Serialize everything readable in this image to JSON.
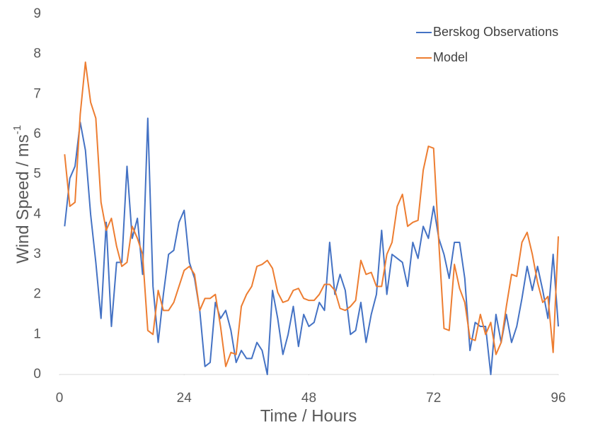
{
  "chart_data": {
    "type": "line",
    "xlabel": "Time / Hours",
    "ylabel": "Wind Speed / ms",
    "ylabel_superscript": "-1",
    "x": [
      1,
      2,
      3,
      4,
      5,
      6,
      7,
      8,
      9,
      10,
      11,
      12,
      13,
      14,
      15,
      16,
      17,
      18,
      19,
      20,
      21,
      22,
      23,
      24,
      25,
      26,
      27,
      28,
      29,
      30,
      31,
      32,
      33,
      34,
      35,
      36,
      37,
      38,
      39,
      40,
      41,
      42,
      43,
      44,
      45,
      46,
      47,
      48,
      49,
      50,
      51,
      52,
      53,
      54,
      55,
      56,
      57,
      58,
      59,
      60,
      61,
      62,
      63,
      64,
      65,
      66,
      67,
      68,
      69,
      70,
      71,
      72,
      73,
      74,
      75,
      76,
      77,
      78,
      79,
      80,
      81,
      82,
      83,
      84,
      85,
      86,
      87,
      88,
      89,
      90,
      91,
      92,
      93,
      94,
      95,
      96
    ],
    "series": [
      {
        "name": "Berskog Observations",
        "color": "#4472c4",
        "values": [
          3.7,
          4.9,
          5.2,
          6.3,
          5.6,
          4.0,
          2.8,
          1.4,
          3.8,
          1.2,
          2.8,
          2.8,
          5.2,
          3.4,
          3.9,
          2.5,
          6.4,
          2.2,
          0.8,
          2.0,
          3.0,
          3.1,
          3.8,
          4.1,
          2.8,
          2.4,
          1.6,
          0.2,
          0.3,
          1.8,
          1.4,
          1.6,
          1.1,
          0.3,
          0.6,
          0.4,
          0.4,
          0.8,
          0.6,
          0.0,
          2.1,
          1.4,
          0.5,
          1.0,
          1.7,
          0.7,
          1.5,
          1.2,
          1.3,
          1.8,
          1.6,
          3.3,
          2.0,
          2.5,
          2.1,
          1.0,
          1.1,
          1.8,
          0.8,
          1.5,
          2.0,
          3.6,
          2.0,
          3.0,
          2.9,
          2.8,
          2.2,
          3.3,
          2.9,
          3.7,
          3.4,
          4.2,
          3.4,
          3.0,
          2.4,
          3.3,
          3.3,
          2.4,
          0.6,
          1.3,
          1.2,
          1.2,
          0.0,
          1.5,
          0.8,
          1.5,
          0.8,
          1.2,
          1.9,
          2.7,
          2.1,
          2.7,
          2.1,
          1.4,
          3.0,
          1.2
        ]
      },
      {
        "name": "Model",
        "color": "#ed7d31",
        "values": [
          5.5,
          4.2,
          4.3,
          6.5,
          7.8,
          6.8,
          6.4,
          4.3,
          3.6,
          3.9,
          3.2,
          2.7,
          2.8,
          3.7,
          3.4,
          3.0,
          1.1,
          1.0,
          2.1,
          1.6,
          1.6,
          1.8,
          2.2,
          2.6,
          2.7,
          2.5,
          1.6,
          1.9,
          1.9,
          2.0,
          1.2,
          0.2,
          0.55,
          0.5,
          1.7,
          2.0,
          2.2,
          2.7,
          2.75,
          2.85,
          2.65,
          2.05,
          1.8,
          1.85,
          2.1,
          2.15,
          1.9,
          1.85,
          1.85,
          2.0,
          2.25,
          2.25,
          2.1,
          1.65,
          1.6,
          1.7,
          1.85,
          2.85,
          2.5,
          2.55,
          2.2,
          2.2,
          3.0,
          3.3,
          4.2,
          4.5,
          3.7,
          3.8,
          3.85,
          5.1,
          5.7,
          5.65,
          3.3,
          1.15,
          1.1,
          2.75,
          2.15,
          1.8,
          0.9,
          0.85,
          1.5,
          1.0,
          1.3,
          0.5,
          0.8,
          1.7,
          2.5,
          2.45,
          3.3,
          3.55,
          3.0,
          2.3,
          1.8,
          1.95,
          0.55,
          3.45
        ]
      }
    ],
    "xlim": [
      0,
      96
    ],
    "xticks": [
      0,
      24,
      48,
      72,
      96
    ],
    "ylim": [
      0,
      9
    ],
    "yticks": [
      0,
      1,
      2,
      3,
      4,
      5,
      6,
      7,
      8,
      9
    ],
    "legend": "upper right",
    "grid": false
  }
}
